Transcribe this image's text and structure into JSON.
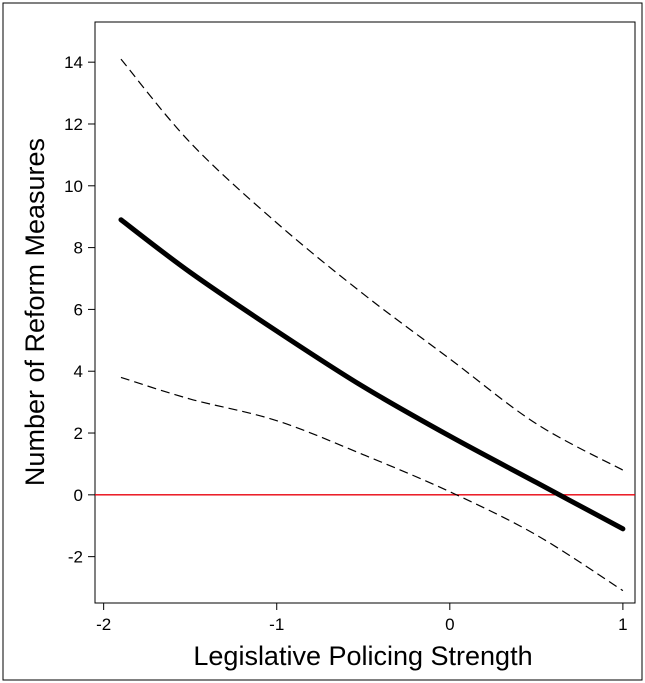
{
  "chart_data": {
    "type": "line",
    "xlabel": "Legislative Policing Strength",
    "ylabel": "Number of Reform Measures",
    "xlim": [
      -2.05,
      1.07
    ],
    "ylim": [
      -3.5,
      15.3
    ],
    "x_ticks": [
      -2,
      -1,
      0,
      1
    ],
    "x_tick_labels": [
      "-2",
      "-1",
      "0",
      "1"
    ],
    "y_ticks": [
      -2,
      0,
      2,
      4,
      6,
      8,
      10,
      12,
      14
    ],
    "y_tick_labels": [
      "-2",
      "0",
      "2",
      "4",
      "6",
      "8",
      "10",
      "12",
      "14"
    ],
    "grid": false,
    "reference_line": {
      "y": 0,
      "color": "#e8000b"
    },
    "series": [
      {
        "role": "estimate",
        "style": "solid",
        "x": [
          -1.9,
          -1.5,
          -1.0,
          -0.5,
          0.0,
          0.5,
          1.0
        ],
        "y": [
          8.9,
          7.2,
          5.3,
          3.5,
          1.9,
          0.4,
          -1.1
        ]
      },
      {
        "role": "upper",
        "style": "dashed",
        "x": [
          -1.9,
          -1.5,
          -1.0,
          -0.5,
          0.0,
          0.5,
          1.0
        ],
        "y": [
          14.1,
          11.4,
          8.8,
          6.5,
          4.4,
          2.3,
          0.8
        ]
      },
      {
        "role": "lower",
        "style": "dashed",
        "x": [
          -1.9,
          -1.5,
          -1.0,
          -0.5,
          0.0,
          0.5,
          1.0
        ],
        "y": [
          3.8,
          3.1,
          2.4,
          1.3,
          0.1,
          -1.3,
          -3.1
        ]
      }
    ]
  }
}
